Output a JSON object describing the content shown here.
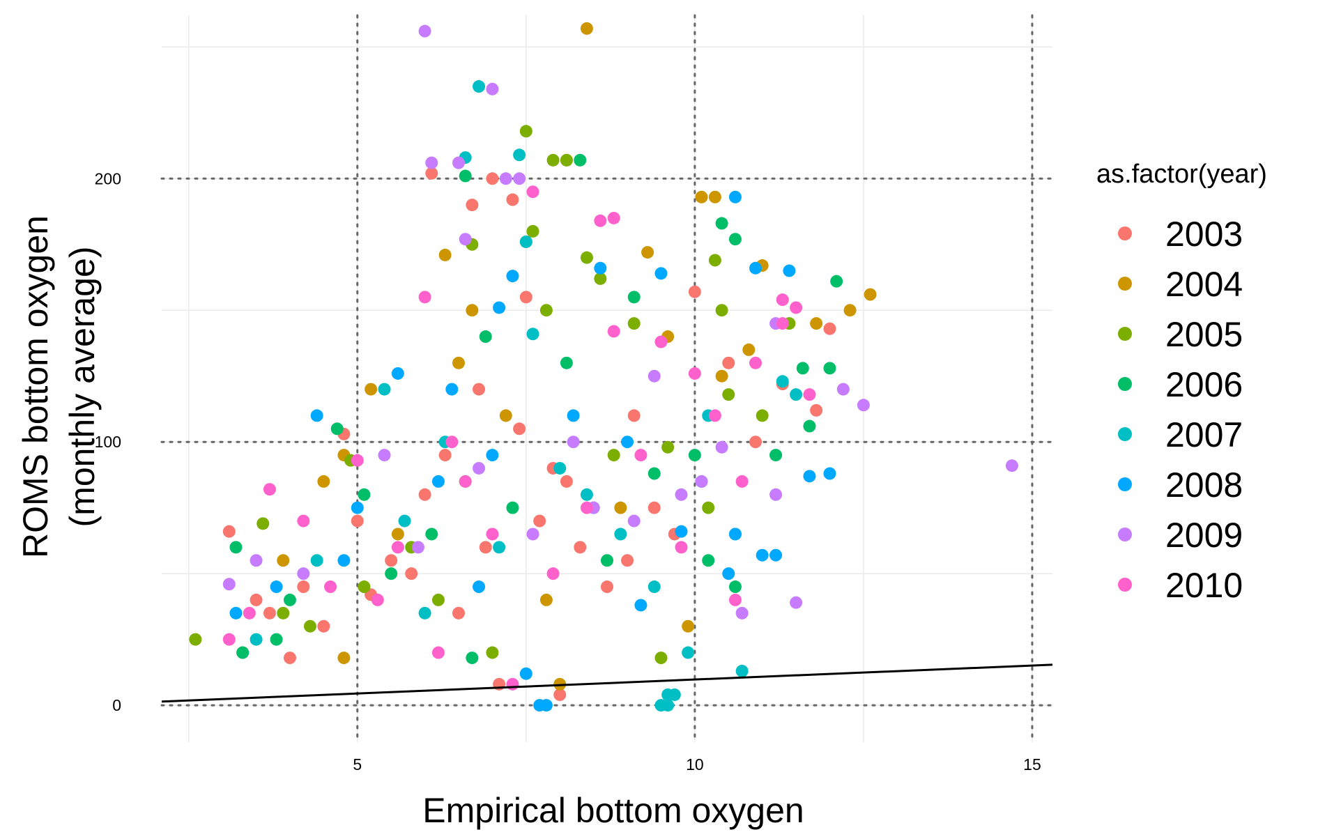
{
  "chart_data": {
    "type": "scatter",
    "title": "",
    "xlabel": "Empirical bottom oxygen",
    "ylabel_line1": "ROMS bottom oxygen",
    "ylabel_line2": "(monthly average)",
    "xlim": [
      2.1,
      15.3
    ],
    "ylim": [
      -14,
      262
    ],
    "x_ticks": [
      5,
      10,
      15
    ],
    "x_tick_labels": [
      "5",
      "10",
      "15"
    ],
    "y_ticks": [
      0,
      100,
      200
    ],
    "y_tick_labels": [
      "0",
      "100",
      "200"
    ],
    "x_minor_gridlines": [
      2.5,
      7.5,
      12.5
    ],
    "y_minor_gridlines": [
      50,
      150,
      250
    ],
    "dotted_reference_lines": {
      "x": [
        5,
        10,
        15
      ],
      "y": [
        0,
        100,
        200
      ]
    },
    "reference_line": {
      "x": [
        2.1,
        15.3
      ],
      "y": [
        1.4,
        15.4
      ],
      "color": "#000000"
    },
    "legend": {
      "title": "as.factor(year)",
      "placement": "right",
      "entries": [
        {
          "label": "2003",
          "color": "#F8766D"
        },
        {
          "label": "2004",
          "color": "#CD9600"
        },
        {
          "label": "2005",
          "color": "#7CAE00"
        },
        {
          "label": "2006",
          "color": "#00BE67"
        },
        {
          "label": "2007",
          "color": "#00BFC4"
        },
        {
          "label": "2008",
          "color": "#00A9FF"
        },
        {
          "label": "2009",
          "color": "#C77CFF"
        },
        {
          "label": "2010",
          "color": "#FF61CC"
        }
      ]
    },
    "series": [
      {
        "name": "2003",
        "color": "#F8766D",
        "points": [
          [
            3.1,
            66
          ],
          [
            3.5,
            40
          ],
          [
            4.2,
            45
          ],
          [
            4.8,
            103
          ],
          [
            5.5,
            55
          ],
          [
            6.1,
            202
          ],
          [
            6.7,
            190
          ],
          [
            7.0,
            200
          ],
          [
            7.3,
            192
          ],
          [
            7.5,
            155
          ],
          [
            6.8,
            120
          ],
          [
            7.9,
            90
          ],
          [
            8.3,
            60
          ],
          [
            9.0,
            55
          ],
          [
            10.0,
            157
          ],
          [
            10.5,
            130
          ],
          [
            11.3,
            122
          ],
          [
            11.8,
            112
          ],
          [
            12.0,
            143
          ],
          [
            6.5,
            35
          ],
          [
            7.1,
            8
          ],
          [
            8.0,
            4
          ],
          [
            4.0,
            18
          ],
          [
            5.0,
            70
          ],
          [
            6.0,
            80
          ],
          [
            9.4,
            75
          ],
          [
            3.3,
            20
          ],
          [
            4.5,
            30
          ],
          [
            5.8,
            50
          ],
          [
            6.9,
            60
          ],
          [
            7.7,
            70
          ],
          [
            8.7,
            45
          ],
          [
            9.7,
            65
          ],
          [
            10.9,
            100
          ],
          [
            3.7,
            35
          ],
          [
            5.2,
            42
          ],
          [
            6.3,
            95
          ],
          [
            7.4,
            105
          ],
          [
            8.1,
            85
          ],
          [
            9.1,
            110
          ]
        ]
      },
      {
        "name": "2004",
        "color": "#CD9600",
        "points": [
          [
            8.4,
            257
          ],
          [
            8.1,
            207
          ],
          [
            6.3,
            171
          ],
          [
            7.5,
            176
          ],
          [
            10.1,
            193
          ],
          [
            10.3,
            193
          ],
          [
            9.3,
            172
          ],
          [
            11.0,
            167
          ],
          [
            12.6,
            156
          ],
          [
            12.3,
            150
          ],
          [
            11.8,
            145
          ],
          [
            5.2,
            120
          ],
          [
            4.8,
            95
          ],
          [
            4.5,
            85
          ],
          [
            4.8,
            18
          ],
          [
            6.7,
            150
          ],
          [
            9.6,
            140
          ],
          [
            10.4,
            125
          ],
          [
            9.9,
            30
          ],
          [
            8.0,
            8
          ],
          [
            6.5,
            130
          ],
          [
            7.2,
            110
          ],
          [
            3.9,
            55
          ],
          [
            5.6,
            65
          ],
          [
            8.9,
            75
          ],
          [
            7.8,
            40
          ],
          [
            10.8,
            135
          ]
        ]
      },
      {
        "name": "2005",
        "color": "#7CAE00",
        "points": [
          [
            2.6,
            25
          ],
          [
            7.5,
            218
          ],
          [
            7.9,
            207
          ],
          [
            8.1,
            207
          ],
          [
            8.6,
            162
          ],
          [
            10.3,
            169
          ],
          [
            10.4,
            150
          ],
          [
            11.4,
            145
          ],
          [
            6.7,
            175
          ],
          [
            7.6,
            180
          ],
          [
            8.4,
            170
          ],
          [
            3.6,
            69
          ],
          [
            4.9,
            93
          ],
          [
            5.8,
            60
          ],
          [
            6.2,
            40
          ],
          [
            7.8,
            150
          ],
          [
            9.1,
            145
          ],
          [
            9.6,
            98
          ],
          [
            10.5,
            118
          ],
          [
            7.0,
            20
          ],
          [
            9.5,
            18
          ],
          [
            3.9,
            35
          ],
          [
            5.1,
            45
          ],
          [
            6.6,
            85
          ],
          [
            8.8,
            95
          ],
          [
            10.2,
            75
          ],
          [
            4.3,
            30
          ],
          [
            11.0,
            110
          ]
        ]
      },
      {
        "name": "2006",
        "color": "#00BE67",
        "points": [
          [
            8.3,
            207
          ],
          [
            6.6,
            201
          ],
          [
            10.4,
            183
          ],
          [
            10.6,
            177
          ],
          [
            12.1,
            161
          ],
          [
            11.6,
            128
          ],
          [
            12.0,
            128
          ],
          [
            11.7,
            106
          ],
          [
            4.7,
            105
          ],
          [
            3.2,
            60
          ],
          [
            3.3,
            20
          ],
          [
            5.1,
            80
          ],
          [
            6.9,
            140
          ],
          [
            8.1,
            130
          ],
          [
            9.1,
            155
          ],
          [
            10.0,
            95
          ],
          [
            10.2,
            55
          ],
          [
            10.6,
            45
          ],
          [
            6.7,
            18
          ],
          [
            8.7,
            55
          ],
          [
            11.2,
            95
          ],
          [
            4.0,
            40
          ],
          [
            5.5,
            50
          ],
          [
            7.3,
            75
          ],
          [
            9.4,
            88
          ],
          [
            3.8,
            25
          ],
          [
            6.1,
            65
          ]
        ]
      },
      {
        "name": "2007",
        "color": "#00BFC4",
        "points": [
          [
            6.8,
            235
          ],
          [
            7.4,
            209
          ],
          [
            6.6,
            208
          ],
          [
            7.5,
            176
          ],
          [
            7.6,
            141
          ],
          [
            5.4,
            120
          ],
          [
            10.7,
            13
          ],
          [
            9.6,
            4
          ],
          [
            9.5,
            0
          ],
          [
            9.6,
            0
          ],
          [
            9.7,
            4
          ],
          [
            10.2,
            110
          ],
          [
            11.3,
            123
          ],
          [
            11.5,
            118
          ],
          [
            6.3,
            100
          ],
          [
            8.0,
            90
          ],
          [
            8.9,
            65
          ],
          [
            9.4,
            45
          ],
          [
            3.5,
            25
          ],
          [
            4.4,
            55
          ],
          [
            5.7,
            70
          ],
          [
            7.1,
            60
          ],
          [
            9.9,
            20
          ],
          [
            10.6,
            65
          ],
          [
            6.0,
            35
          ],
          [
            8.4,
            80
          ]
        ]
      },
      {
        "name": "2008",
        "color": "#00A9FF",
        "points": [
          [
            10.6,
            193
          ],
          [
            7.3,
            163
          ],
          [
            7.1,
            151
          ],
          [
            8.6,
            166
          ],
          [
            10.9,
            166
          ],
          [
            9.5,
            164
          ],
          [
            11.4,
            165
          ],
          [
            5.6,
            126
          ],
          [
            4.4,
            110
          ],
          [
            3.2,
            35
          ],
          [
            4.8,
            55
          ],
          [
            6.2,
            85
          ],
          [
            7.7,
            0
          ],
          [
            7.8,
            0
          ],
          [
            9.8,
            66
          ],
          [
            11.0,
            57
          ],
          [
            11.2,
            57
          ],
          [
            11.7,
            87
          ],
          [
            12.0,
            88
          ],
          [
            10.6,
            65
          ],
          [
            10.5,
            50
          ],
          [
            8.5,
            75
          ],
          [
            9.2,
            38
          ],
          [
            7.5,
            12
          ],
          [
            6.4,
            120
          ],
          [
            5.0,
            75
          ],
          [
            3.8,
            45
          ],
          [
            7.0,
            95
          ],
          [
            8.2,
            110
          ],
          [
            9.0,
            100
          ],
          [
            10.1,
            85
          ],
          [
            6.8,
            45
          ]
        ]
      },
      {
        "name": "2009",
        "color": "#C77CFF",
        "points": [
          [
            6.0,
            256
          ],
          [
            7.0,
            234
          ],
          [
            6.1,
            206
          ],
          [
            6.5,
            206
          ],
          [
            7.2,
            200
          ],
          [
            7.4,
            200
          ],
          [
            6.6,
            177
          ],
          [
            12.2,
            120
          ],
          [
            12.5,
            114
          ],
          [
            11.2,
            80
          ],
          [
            11.5,
            39
          ],
          [
            14.7,
            91
          ],
          [
            11.2,
            145
          ],
          [
            9.8,
            80
          ],
          [
            10.1,
            85
          ],
          [
            3.1,
            46
          ],
          [
            3.5,
            55
          ],
          [
            5.4,
            95
          ],
          [
            6.8,
            90
          ],
          [
            8.5,
            75
          ],
          [
            9.4,
            125
          ],
          [
            10.4,
            98
          ],
          [
            10.7,
            35
          ],
          [
            7.6,
            65
          ],
          [
            5.9,
            60
          ],
          [
            4.2,
            50
          ],
          [
            8.2,
            100
          ],
          [
            9.1,
            70
          ]
        ]
      },
      {
        "name": "2010",
        "color": "#FF61CC",
        "points": [
          [
            7.6,
            195
          ],
          [
            8.6,
            184
          ],
          [
            8.8,
            185
          ],
          [
            11.3,
            154
          ],
          [
            11.5,
            151
          ],
          [
            11.3,
            145
          ],
          [
            11.7,
            118
          ],
          [
            6.0,
            155
          ],
          [
            5.0,
            93
          ],
          [
            3.7,
            82
          ],
          [
            3.1,
            25
          ],
          [
            6.4,
            100
          ],
          [
            7.3,
            8
          ],
          [
            8.8,
            142
          ],
          [
            9.5,
            138
          ],
          [
            10.0,
            126
          ],
          [
            10.9,
            130
          ],
          [
            10.3,
            110
          ],
          [
            10.6,
            40
          ],
          [
            9.8,
            60
          ],
          [
            8.4,
            75
          ],
          [
            7.0,
            65
          ],
          [
            5.6,
            60
          ],
          [
            4.6,
            45
          ],
          [
            3.4,
            35
          ],
          [
            6.6,
            85
          ],
          [
            7.9,
            50
          ],
          [
            9.2,
            95
          ],
          [
            10.7,
            85
          ],
          [
            4.2,
            70
          ],
          [
            5.3,
            40
          ],
          [
            6.2,
            20
          ]
        ]
      }
    ]
  }
}
